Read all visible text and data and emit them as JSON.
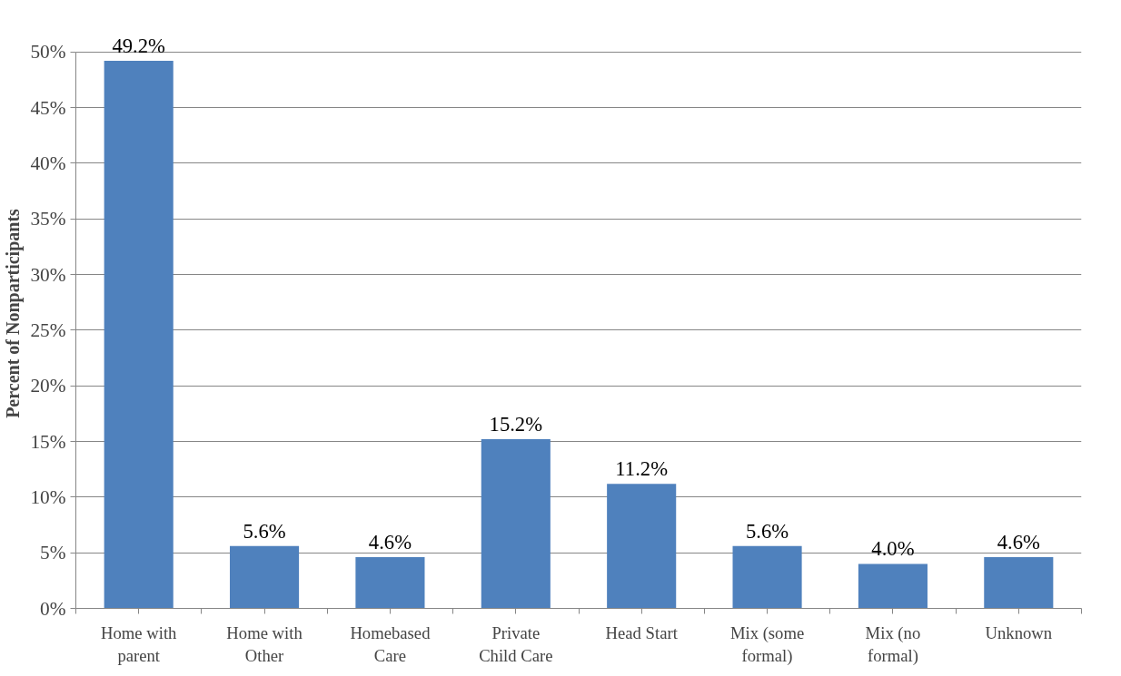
{
  "chart_data": {
    "type": "bar",
    "ylabel": "Percent of Nonparticipants",
    "categories": [
      "Home with parent",
      "Home with Other",
      "Homebased Care",
      "Private Child Care",
      "Head Start",
      "Mix (some formal)",
      "Mix (no formal)",
      "Unknown"
    ],
    "values": [
      49.2,
      5.6,
      4.6,
      15.2,
      11.2,
      5.6,
      4.0,
      4.6
    ],
    "value_labels": [
      "49.2%",
      "5.6%",
      "4.6%",
      "15.2%",
      "11.2%",
      "5.6%",
      "4.0%",
      "4.6%"
    ],
    "color": "#4f81bd",
    "ylim": [
      0,
      50
    ],
    "yticks": [
      {
        "value": 0,
        "label": "0%"
      },
      {
        "value": 5,
        "label": "5%"
      },
      {
        "value": 10,
        "label": "10%"
      },
      {
        "value": 15,
        "label": "15%"
      },
      {
        "value": 20,
        "label": "20%"
      },
      {
        "value": 25,
        "label": "25%"
      },
      {
        "value": 30,
        "label": "30%"
      },
      {
        "value": 35,
        "label": "35%"
      },
      {
        "value": 40,
        "label": "40%"
      },
      {
        "value": 45,
        "label": "45%"
      },
      {
        "value": 50,
        "label": "50%"
      }
    ],
    "grid": "y"
  }
}
